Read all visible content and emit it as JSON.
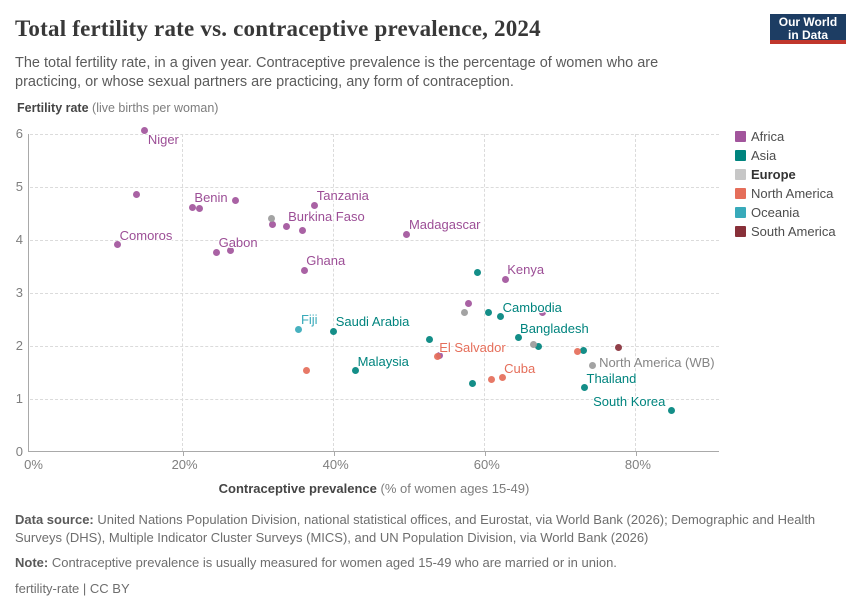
{
  "header": {
    "title": "Total fertility rate vs. contraceptive prevalence, 2024",
    "subtitle": "The total fertility rate, in a given year. Contraceptive prevalence is the percentage of women who are practicing, or whose sexual partners are practicing, any form of contraception."
  },
  "logo": {
    "line1": "Our World",
    "line2": "in Data"
  },
  "chart_data": {
    "type": "scatter",
    "title": "Total fertility rate vs. contraceptive prevalence, 2024",
    "x_axis": {
      "title_bold": "Contraceptive prevalence",
      "title_rest": " (% of women ages 15-49)",
      "min": 0,
      "max": 91,
      "ticks": [
        {
          "v": 0,
          "label": "0%"
        },
        {
          "v": 20,
          "label": "20%"
        },
        {
          "v": 40,
          "label": "40%"
        },
        {
          "v": 60,
          "label": "60%"
        },
        {
          "v": 80,
          "label": "80%"
        }
      ],
      "grid": "dashed"
    },
    "y_axis": {
      "title_bold": "Fertility rate",
      "title_rest": " (live births per woman)",
      "min": 0,
      "max": 6,
      "ticks": [
        {
          "v": 0,
          "label": "0"
        },
        {
          "v": 1,
          "label": "1"
        },
        {
          "v": 2,
          "label": "2"
        },
        {
          "v": 3,
          "label": "3"
        },
        {
          "v": 4,
          "label": "4"
        },
        {
          "v": 5,
          "label": "5"
        },
        {
          "v": 6,
          "label": "6"
        }
      ],
      "grid": "dashed"
    },
    "legend": [
      {
        "label": "Africa",
        "color": "#A2559C",
        "bold": false
      },
      {
        "label": "Asia",
        "color": "#00847E",
        "bold": false
      },
      {
        "label": "Europe",
        "color": "#C7C7C7",
        "bold": true
      },
      {
        "label": "North America",
        "color": "#E56E5A",
        "bold": false
      },
      {
        "label": "Oceania",
        "color": "#38AABA",
        "bold": false
      },
      {
        "label": "South America",
        "color": "#883039",
        "bold": false
      }
    ],
    "series": [
      {
        "name": "Africa",
        "color": "#A2559C",
        "label_color": "#9C4E96",
        "points": [
          {
            "x": 15.0,
            "y": 6.07,
            "label": "Niger",
            "label_pos": "below-right"
          },
          {
            "x": 13.9,
            "y": 4.85
          },
          {
            "x": 21.3,
            "y": 4.62,
            "label": "Benin",
            "label_pos": "above-right"
          },
          {
            "x": 22.2,
            "y": 4.6
          },
          {
            "x": 27.0,
            "y": 4.75
          },
          {
            "x": 37.5,
            "y": 4.66,
            "label": "Tanzania",
            "label_pos": "above-right"
          },
          {
            "x": 31.9,
            "y": 4.3
          },
          {
            "x": 33.7,
            "y": 4.26,
            "label": "Burkina Faso",
            "label_pos": "above-right"
          },
          {
            "x": 35.9,
            "y": 4.18
          },
          {
            "x": 11.4,
            "y": 3.91,
            "label": "Comoros",
            "label_pos": "above-right"
          },
          {
            "x": 24.5,
            "y": 3.77,
            "label": "Gabon",
            "label_pos": "above-right"
          },
          {
            "x": 26.4,
            "y": 3.8
          },
          {
            "x": 36.1,
            "y": 3.43,
            "label": "Ghana",
            "label_pos": "above-right"
          },
          {
            "x": 49.7,
            "y": 4.11,
            "label": "Madagascar",
            "label_pos": "above-right"
          },
          {
            "x": 62.7,
            "y": 3.26,
            "label": "Kenya",
            "label_pos": "above-right"
          },
          {
            "x": 57.9,
            "y": 2.81
          },
          {
            "x": 67.7,
            "y": 2.64
          },
          {
            "x": 54.0,
            "y": 1.82
          }
        ]
      },
      {
        "name": "Asia",
        "color": "#00847E",
        "label_color": "#00847E",
        "points": [
          {
            "x": 59.0,
            "y": 3.38
          },
          {
            "x": 60.5,
            "y": 2.64
          },
          {
            "x": 62.1,
            "y": 2.55,
            "label": "Cambodia",
            "label_pos": "above-right"
          },
          {
            "x": 40.0,
            "y": 2.28,
            "label": "Saudi Arabia",
            "label_pos": "above-right"
          },
          {
            "x": 64.4,
            "y": 2.16,
            "label": "Bangladesh",
            "label_pos": "above-right"
          },
          {
            "x": 67.1,
            "y": 1.99
          },
          {
            "x": 52.7,
            "y": 2.13
          },
          {
            "x": 42.9,
            "y": 1.53,
            "label": "Malaysia",
            "label_pos": "above-right"
          },
          {
            "x": 58.4,
            "y": 1.3
          },
          {
            "x": 73.1,
            "y": 1.92
          },
          {
            "x": 73.2,
            "y": 1.21,
            "label": "Thailand",
            "label_pos": "above-right"
          },
          {
            "x": 84.7,
            "y": 0.79,
            "label": "South Korea",
            "label_pos": "left"
          }
        ]
      },
      {
        "name": "North America",
        "color": "#E56E5A",
        "label_color": "#E56E5A",
        "points": [
          {
            "x": 53.7,
            "y": 1.8,
            "label": "El Salvador",
            "label_pos": "above-right"
          },
          {
            "x": 36.4,
            "y": 1.53
          },
          {
            "x": 62.3,
            "y": 1.4,
            "label": "Cuba",
            "label_pos": "above-right"
          },
          {
            "x": 60.9,
            "y": 1.36
          },
          {
            "x": 72.3,
            "y": 1.9
          }
        ]
      },
      {
        "name": "Oceania",
        "color": "#38AABA",
        "label_color": "#38AABA",
        "points": [
          {
            "x": 35.4,
            "y": 2.32,
            "label": "Fiji",
            "label_pos": "above-right"
          }
        ]
      },
      {
        "name": "South America",
        "color": "#883039",
        "label_color": "#883039",
        "points": [
          {
            "x": 77.7,
            "y": 1.97
          }
        ]
      },
      {
        "name": "Europe",
        "color": "#9B9B9B",
        "label_color": "#858585",
        "points": [
          {
            "x": 31.8,
            "y": 4.41
          },
          {
            "x": 57.3,
            "y": 2.64
          },
          {
            "x": 66.5,
            "y": 2.03
          },
          {
            "x": 74.2,
            "y": 1.64,
            "label": "North America (WB)",
            "label_pos": "right"
          }
        ]
      }
    ]
  },
  "footer": {
    "source_bold": "Data source:",
    "source_text": " United Nations Population Division, national statistical offices, and Eurostat, via World Bank (2026); Demographic and Health Surveys (DHS), Multiple Indicator Cluster Surveys (MICS), and UN Population Division, via World Bank (2026)",
    "note_bold": "Note:",
    "note_text": " Contraceptive prevalence is usually measured for women aged 15-49 who are married or in union.",
    "license": "fertility-rate | CC BY"
  }
}
